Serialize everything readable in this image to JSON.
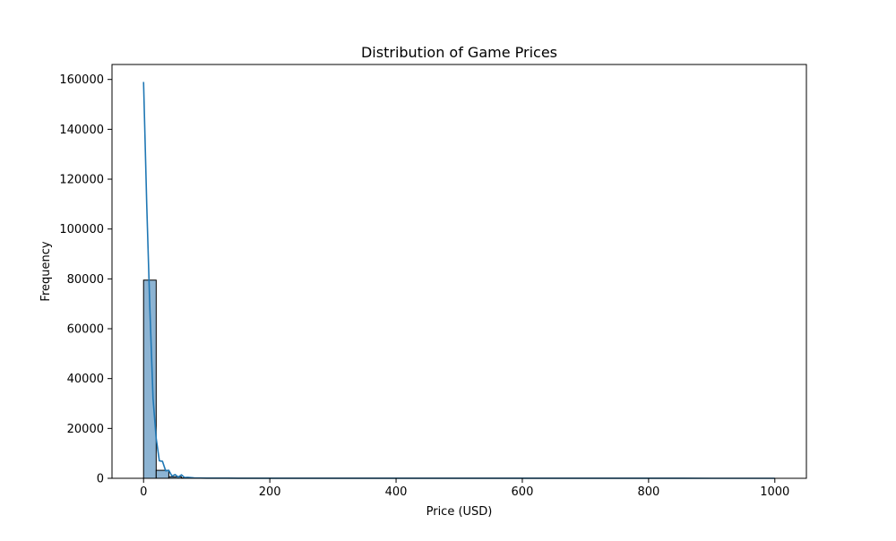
{
  "chart_data": {
    "type": "bar",
    "title": "Distribution of Game Prices",
    "xlabel": "Price (USD)",
    "ylabel": "Frequency",
    "xlim": [
      -50,
      1050
    ],
    "ylim": [
      0,
      166000
    ],
    "xticks": [
      0,
      200,
      400,
      600,
      800,
      1000
    ],
    "yticks": [
      0,
      20000,
      40000,
      60000,
      80000,
      100000,
      120000,
      140000,
      160000
    ],
    "grid": false,
    "bin_width": 20,
    "histogram": [
      {
        "x0": 0,
        "x1": 20,
        "value": 79500
      },
      {
        "x0": 20,
        "x1": 40,
        "value": 3200
      },
      {
        "x0": 40,
        "x1": 60,
        "value": 600
      },
      {
        "x0": 60,
        "x1": 80,
        "value": 150
      },
      {
        "x0": 80,
        "x1": 100,
        "value": 50
      },
      {
        "x0": 100,
        "x1": 120,
        "value": 20
      },
      {
        "x0": 120,
        "x1": 140,
        "value": 10
      },
      {
        "x0": 140,
        "x1": 160,
        "value": 5
      },
      {
        "x0": 160,
        "x1": 180,
        "value": 3
      },
      {
        "x0": 180,
        "x1": 200,
        "value": 2
      },
      {
        "x0": 200,
        "x1": 220,
        "value": 2
      }
    ],
    "kde": {
      "x": [
        0,
        5,
        10,
        15,
        20,
        25,
        30,
        35,
        40,
        45,
        50,
        55,
        60,
        65,
        70,
        80,
        90,
        100,
        150,
        200,
        300,
        400,
        500,
        600,
        700,
        800,
        900,
        1000
      ],
      "y": [
        159000,
        110000,
        68000,
        32000,
        16000,
        7000,
        6800,
        3000,
        3200,
        900,
        1500,
        500,
        1400,
        300,
        400,
        150,
        100,
        80,
        40,
        30,
        20,
        15,
        10,
        10,
        8,
        6,
        5,
        5
      ]
    },
    "colors": {
      "bar_fill": "#8db4d3",
      "bar_stroke": "#000000",
      "kde_line": "#1f77b4",
      "axes": "#000000"
    }
  }
}
